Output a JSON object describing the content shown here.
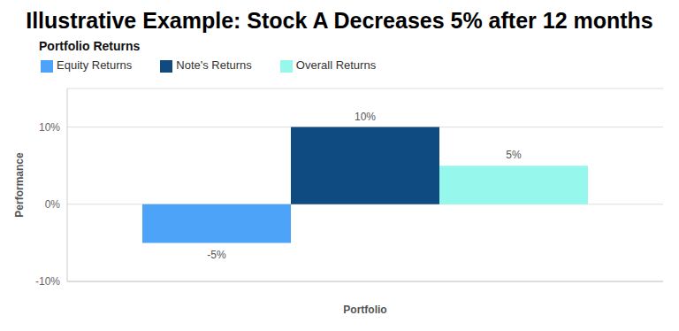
{
  "chart_data": {
    "type": "bar",
    "title": "Illustrative Example: Stock A Decreases 5% after 12 months",
    "subtitle": "Portfolio Returns",
    "x_label": "Portfolio",
    "y_label": "Performance",
    "categories": [
      null
    ],
    "series": [
      {
        "name": "Equity Returns",
        "color": "#4da3f7",
        "values": [
          -5
        ],
        "value_labels": [
          "-5%"
        ]
      },
      {
        "name": "Note's Returns",
        "color": "#0f4a80",
        "values": [
          10
        ],
        "value_labels": [
          "10%"
        ]
      },
      {
        "name": "Overall Returns",
        "color": "#96f8ec",
        "values": [
          5
        ],
        "value_labels": [
          "5%"
        ]
      }
    ],
    "ylim": [
      -10,
      15
    ],
    "yticks": [
      {
        "value": -10,
        "label": "-10%"
      },
      {
        "value": 0,
        "label": "0%"
      },
      {
        "value": 10,
        "label": "10%"
      }
    ],
    "grid": true,
    "legend": "top",
    "data_labels": true
  }
}
